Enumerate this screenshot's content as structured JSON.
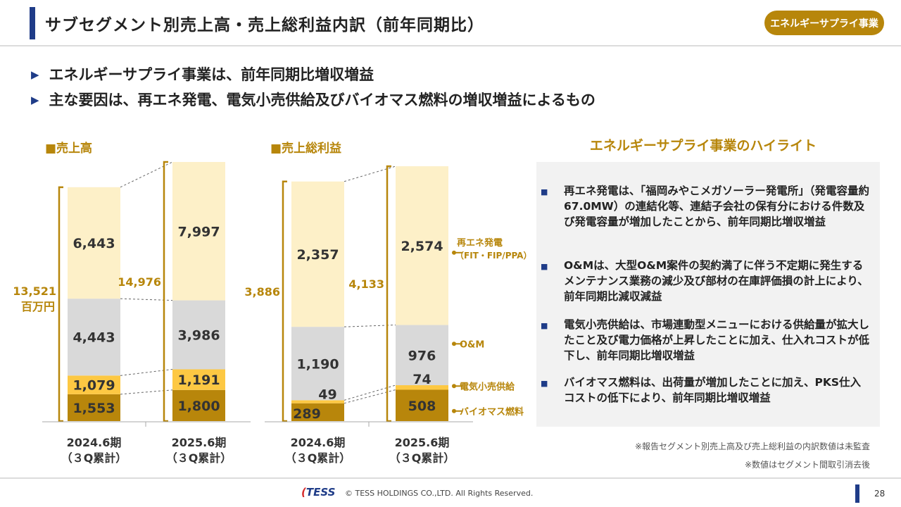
{
  "header": {
    "title": "サブセグメント別売上高・売上総利益内訳（前年同期比）",
    "badge": "エネルギーサプライ事業"
  },
  "bullets": [
    "エネルギーサプライ事業は、前年同期比増収増益",
    "主な要因は、再エネ発電、電気小売供給及びバイオマス燃料の増収増益によるもの"
  ],
  "chart_data": [
    {
      "type": "bar",
      "stacked": true,
      "title": "■売上高",
      "categories": [
        "2024.6期\n（３Q累計）",
        "2025.6期\n（３Q累計）"
      ],
      "series": [
        {
          "name": "バイオマス燃料",
          "values": [
            1553,
            1800
          ]
        },
        {
          "name": "電気小売供給",
          "values": [
            1079,
            1191
          ]
        },
        {
          "name": "O&M",
          "values": [
            4443,
            3986
          ]
        },
        {
          "name": "再エネ発電（FIT・FIP/PPA）",
          "values": [
            6443,
            7997
          ]
        }
      ],
      "totals": [
        13521,
        14976
      ],
      "total_labels": [
        "13,521",
        "14,976"
      ],
      "unit_label": "百万円",
      "value_labels": [
        [
          "1,553",
          "1,079",
          "4,443",
          "6,443"
        ],
        [
          "1,800",
          "1,191",
          "3,986",
          "7,997"
        ]
      ],
      "ylim": [
        0,
        14976
      ]
    },
    {
      "type": "bar",
      "stacked": true,
      "title": "■売上総利益",
      "categories": [
        "2024.6期\n（３Q累計）",
        "2025.6期\n（３Q累計）"
      ],
      "series": [
        {
          "name": "バイオマス燃料",
          "values": [
            289,
            508
          ]
        },
        {
          "name": "電気小売供給",
          "values": [
            49,
            74
          ]
        },
        {
          "name": "O&M",
          "values": [
            1190,
            976
          ]
        },
        {
          "name": "再エネ発電（FIT・FIP/PPA）",
          "values": [
            2357,
            2574
          ]
        }
      ],
      "totals": [
        3886,
        4133
      ],
      "total_labels": [
        "3,886",
        "4,133"
      ],
      "value_labels": [
        [
          "289",
          "49",
          "1,190",
          "2,357"
        ],
        [
          "508",
          "74",
          "976",
          "2,574"
        ]
      ],
      "ylim": [
        0,
        4133
      ]
    }
  ],
  "categories_display": [
    {
      "period": "2024.6期",
      "sub": "（３Q累計）"
    },
    {
      "period": "2025.6期",
      "sub": "（３Q累計）"
    }
  ],
  "legend": {
    "renewable": "再エネ発電",
    "renewable_sub": "（FIT・FIP/PPA）",
    "om": "O&M",
    "retail": "電気小売供給",
    "biomass": "バイオマス燃料"
  },
  "colors": {
    "renewable": "#fdf0c8",
    "om": "#d9d9d9",
    "retail": "#fdc843",
    "biomass": "#b8860b",
    "accent": "#b7860b",
    "navy": "#1f3c88"
  },
  "highlights": {
    "title": "エネルギーサプライ事業のハイライト",
    "items": [
      "再エネ発電は、「福岡みやこメガソーラー発電所」（発電容量約67.0MW）の連結化等、連結子会社の保有分における件数及び発電容量が増加したことから、前年同期比増収増益",
      "O&Mは、大型O&M案件の契約満了に伴う不定期に発生するメンテナンス業務の減少及び部材の在庫評価損の計上により、前年同期比減収減益",
      "電気小売供給は、市場連動型メニューにおける供給量が拡大したこと及び電力価格が上昇したことに加え、仕入れコストが低下し、前年同期比増収増益",
      "バイオマス燃料は、出荷量が増加したことに加え、PKS仕入コストの低下により、前年同期比増収増益"
    ]
  },
  "notes": [
    "※報告セグメント別売上高及び売上総利益の内訳数値は未監査",
    "※数値はセグメント間取引消去後"
  ],
  "footer": {
    "logo": "TESS",
    "copyright": "© TESS HOLDINGS CO.,LTD. All Rights Reserved.",
    "page": "28"
  }
}
